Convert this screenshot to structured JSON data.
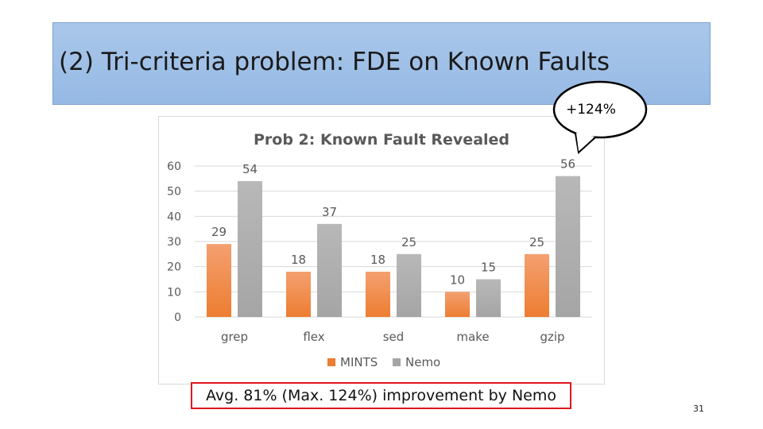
{
  "slide": {
    "title": "(2) Tri-criteria problem: FDE on Known Faults",
    "callout": "+124%",
    "summary": "Avg. 81% (Max. 124%) improvement by Nemo",
    "page_number": "31"
  },
  "colors": {
    "mints": "#ed7d31",
    "nemo": "#a5a5a5",
    "title_band": "#a9c7ea",
    "summary_border": "#e0161d"
  },
  "chart_data": {
    "type": "bar",
    "title": "Prob 2: Known Fault Revealed",
    "categories": [
      "grep",
      "flex",
      "sed",
      "make",
      "gzip"
    ],
    "series": [
      {
        "name": "MINTS",
        "values": [
          29,
          18,
          18,
          10,
          25
        ]
      },
      {
        "name": "Nemo",
        "values": [
          54,
          37,
          25,
          15,
          56
        ]
      }
    ],
    "ylim": [
      0,
      60
    ],
    "yticks": [
      0,
      10,
      20,
      30,
      40,
      50,
      60
    ],
    "grid": true,
    "legend": "bottom"
  }
}
